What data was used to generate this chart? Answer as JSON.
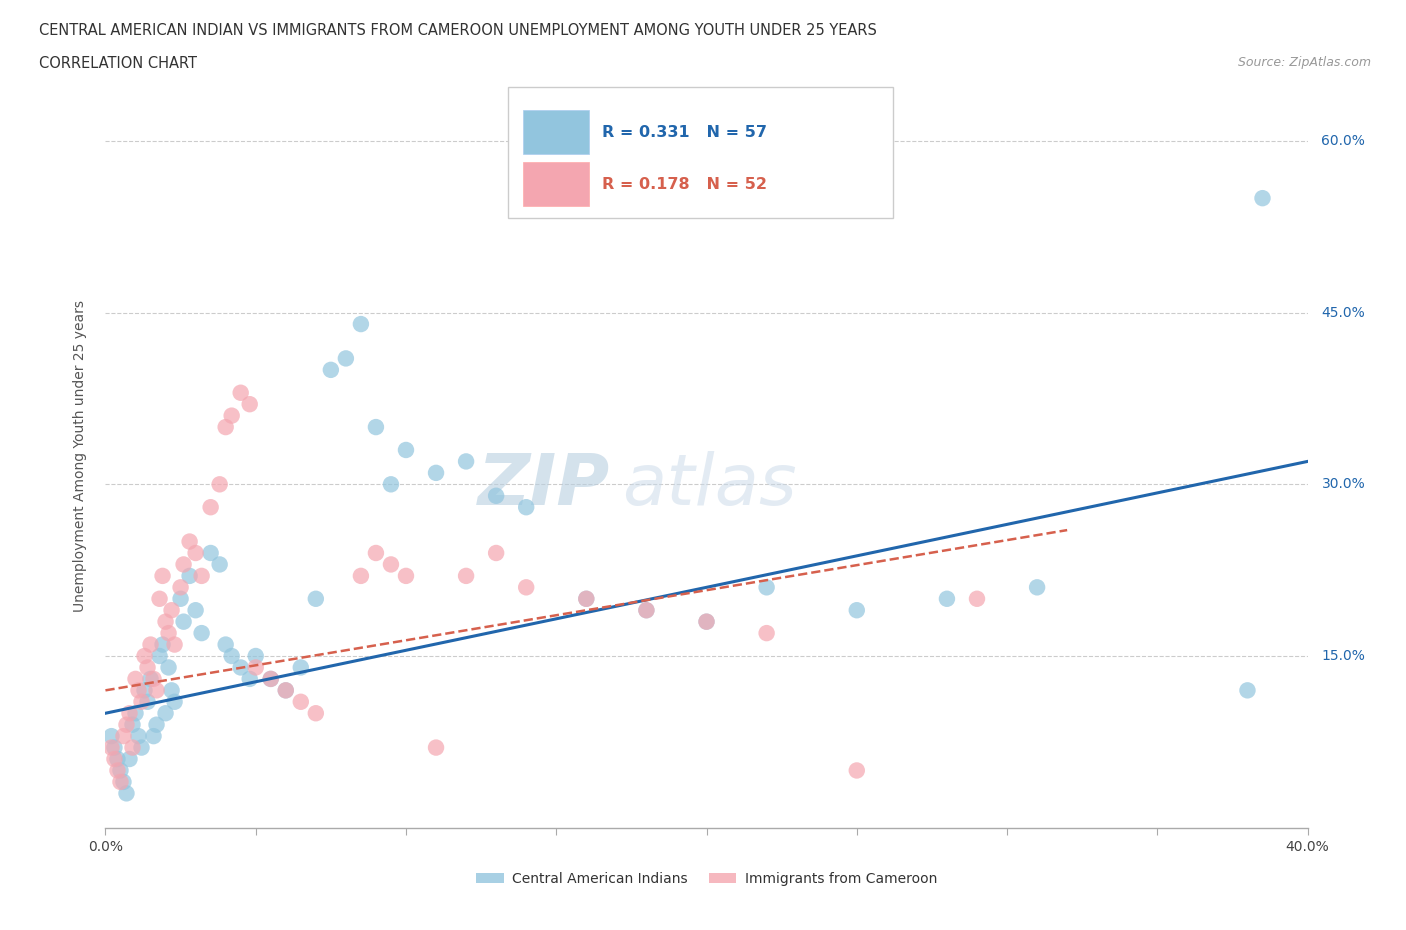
{
  "title_line1": "CENTRAL AMERICAN INDIAN VS IMMIGRANTS FROM CAMEROON UNEMPLOYMENT AMONG YOUTH UNDER 25 YEARS",
  "title_line2": "CORRELATION CHART",
  "source_text": "Source: ZipAtlas.com",
  "ylabel": "Unemployment Among Youth under 25 years",
  "xlim": [
    0.0,
    0.4
  ],
  "ylim": [
    0.0,
    0.65
  ],
  "ytick_positions": [
    0.0,
    0.15,
    0.3,
    0.45,
    0.6
  ],
  "ytick_labels_right": [
    "",
    "15.0%",
    "30.0%",
    "45.0%",
    "60.0%"
  ],
  "grid_yticks": [
    0.15,
    0.3,
    0.45,
    0.6
  ],
  "blue_color": "#92C5DE",
  "pink_color": "#F4A6B0",
  "blue_line_color": "#2166AC",
  "pink_line_color": "#D6604D",
  "watermark_zip": "ZIP",
  "watermark_atlas": "atlas",
  "blue_scatter_x": [
    0.002,
    0.003,
    0.004,
    0.005,
    0.006,
    0.007,
    0.008,
    0.009,
    0.01,
    0.011,
    0.012,
    0.013,
    0.014,
    0.015,
    0.016,
    0.017,
    0.018,
    0.019,
    0.02,
    0.021,
    0.022,
    0.023,
    0.025,
    0.026,
    0.028,
    0.03,
    0.032,
    0.035,
    0.038,
    0.04,
    0.042,
    0.045,
    0.048,
    0.05,
    0.055,
    0.06,
    0.065,
    0.07,
    0.075,
    0.08,
    0.085,
    0.09,
    0.095,
    0.1,
    0.11,
    0.12,
    0.13,
    0.14,
    0.16,
    0.18,
    0.2,
    0.22,
    0.25,
    0.28,
    0.31,
    0.38,
    0.385
  ],
  "blue_scatter_y": [
    0.08,
    0.07,
    0.06,
    0.05,
    0.04,
    0.03,
    0.06,
    0.09,
    0.1,
    0.08,
    0.07,
    0.12,
    0.11,
    0.13,
    0.08,
    0.09,
    0.15,
    0.16,
    0.1,
    0.14,
    0.12,
    0.11,
    0.2,
    0.18,
    0.22,
    0.19,
    0.17,
    0.24,
    0.23,
    0.16,
    0.15,
    0.14,
    0.13,
    0.15,
    0.13,
    0.12,
    0.14,
    0.2,
    0.4,
    0.41,
    0.44,
    0.35,
    0.3,
    0.33,
    0.31,
    0.32,
    0.29,
    0.28,
    0.2,
    0.19,
    0.18,
    0.21,
    0.19,
    0.2,
    0.21,
    0.12,
    0.55
  ],
  "pink_scatter_x": [
    0.002,
    0.003,
    0.004,
    0.005,
    0.006,
    0.007,
    0.008,
    0.009,
    0.01,
    0.011,
    0.012,
    0.013,
    0.014,
    0.015,
    0.016,
    0.017,
    0.018,
    0.019,
    0.02,
    0.021,
    0.022,
    0.023,
    0.025,
    0.026,
    0.028,
    0.03,
    0.032,
    0.035,
    0.038,
    0.04,
    0.042,
    0.045,
    0.048,
    0.05,
    0.055,
    0.06,
    0.065,
    0.07,
    0.085,
    0.09,
    0.095,
    0.1,
    0.11,
    0.12,
    0.13,
    0.14,
    0.16,
    0.18,
    0.2,
    0.22,
    0.25,
    0.29
  ],
  "pink_scatter_y": [
    0.07,
    0.06,
    0.05,
    0.04,
    0.08,
    0.09,
    0.1,
    0.07,
    0.13,
    0.12,
    0.11,
    0.15,
    0.14,
    0.16,
    0.13,
    0.12,
    0.2,
    0.22,
    0.18,
    0.17,
    0.19,
    0.16,
    0.21,
    0.23,
    0.25,
    0.24,
    0.22,
    0.28,
    0.3,
    0.35,
    0.36,
    0.38,
    0.37,
    0.14,
    0.13,
    0.12,
    0.11,
    0.1,
    0.22,
    0.24,
    0.23,
    0.22,
    0.07,
    0.22,
    0.24,
    0.21,
    0.2,
    0.19,
    0.18,
    0.17,
    0.05,
    0.2
  ],
  "blue_trend_x": [
    0.0,
    0.4
  ],
  "blue_trend_y": [
    0.1,
    0.32
  ],
  "pink_trend_x": [
    0.0,
    0.32
  ],
  "pink_trend_y": [
    0.12,
    0.26
  ],
  "legend_R1": "R = 0.331",
  "legend_N1": "N = 57",
  "legend_R2": "R = 0.178",
  "legend_N2": "N = 52",
  "legend_label_blue": "Central American Indians",
  "legend_label_pink": "Immigrants from Cameroon"
}
